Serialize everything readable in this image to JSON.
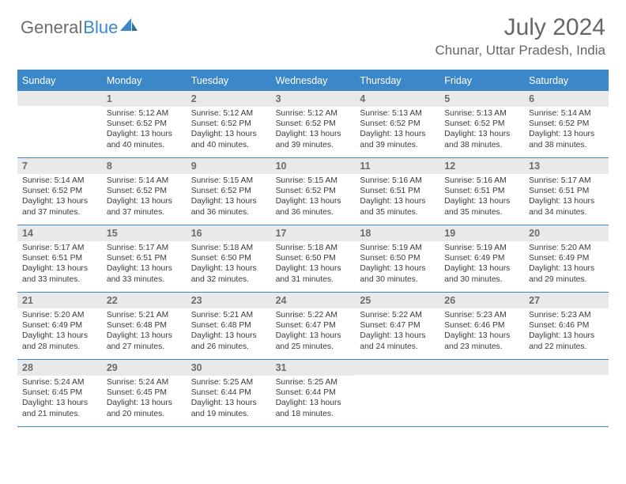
{
  "logo": {
    "general": "General",
    "blue": "Blue",
    "icon_color": "#3b87c8"
  },
  "title": "July 2024",
  "location": "Chunar, Uttar Pradesh, India",
  "colors": {
    "header_bar": "#3b87c8",
    "daynum_bg": "#e9e9e9",
    "daynum_text": "#6b6b6b",
    "body_text": "#3a3a3a",
    "title_text": "#666666",
    "background": "#ffffff"
  },
  "typography": {
    "title_fontsize": 30,
    "location_fontsize": 17,
    "dow_fontsize": 12.5,
    "daynum_fontsize": 12.5,
    "body_fontsize": 10.3
  },
  "dow": [
    "Sunday",
    "Monday",
    "Tuesday",
    "Wednesday",
    "Thursday",
    "Friday",
    "Saturday"
  ],
  "weeks": [
    [
      {
        "n": "",
        "sr": "",
        "ss": "",
        "dl": ""
      },
      {
        "n": "1",
        "sr": "Sunrise: 5:12 AM",
        "ss": "Sunset: 6:52 PM",
        "dl": "Daylight: 13 hours and 40 minutes."
      },
      {
        "n": "2",
        "sr": "Sunrise: 5:12 AM",
        "ss": "Sunset: 6:52 PM",
        "dl": "Daylight: 13 hours and 40 minutes."
      },
      {
        "n": "3",
        "sr": "Sunrise: 5:12 AM",
        "ss": "Sunset: 6:52 PM",
        "dl": "Daylight: 13 hours and 39 minutes."
      },
      {
        "n": "4",
        "sr": "Sunrise: 5:13 AM",
        "ss": "Sunset: 6:52 PM",
        "dl": "Daylight: 13 hours and 39 minutes."
      },
      {
        "n": "5",
        "sr": "Sunrise: 5:13 AM",
        "ss": "Sunset: 6:52 PM",
        "dl": "Daylight: 13 hours and 38 minutes."
      },
      {
        "n": "6",
        "sr": "Sunrise: 5:14 AM",
        "ss": "Sunset: 6:52 PM",
        "dl": "Daylight: 13 hours and 38 minutes."
      }
    ],
    [
      {
        "n": "7",
        "sr": "Sunrise: 5:14 AM",
        "ss": "Sunset: 6:52 PM",
        "dl": "Daylight: 13 hours and 37 minutes."
      },
      {
        "n": "8",
        "sr": "Sunrise: 5:14 AM",
        "ss": "Sunset: 6:52 PM",
        "dl": "Daylight: 13 hours and 37 minutes."
      },
      {
        "n": "9",
        "sr": "Sunrise: 5:15 AM",
        "ss": "Sunset: 6:52 PM",
        "dl": "Daylight: 13 hours and 36 minutes."
      },
      {
        "n": "10",
        "sr": "Sunrise: 5:15 AM",
        "ss": "Sunset: 6:52 PM",
        "dl": "Daylight: 13 hours and 36 minutes."
      },
      {
        "n": "11",
        "sr": "Sunrise: 5:16 AM",
        "ss": "Sunset: 6:51 PM",
        "dl": "Daylight: 13 hours and 35 minutes."
      },
      {
        "n": "12",
        "sr": "Sunrise: 5:16 AM",
        "ss": "Sunset: 6:51 PM",
        "dl": "Daylight: 13 hours and 35 minutes."
      },
      {
        "n": "13",
        "sr": "Sunrise: 5:17 AM",
        "ss": "Sunset: 6:51 PM",
        "dl": "Daylight: 13 hours and 34 minutes."
      }
    ],
    [
      {
        "n": "14",
        "sr": "Sunrise: 5:17 AM",
        "ss": "Sunset: 6:51 PM",
        "dl": "Daylight: 13 hours and 33 minutes."
      },
      {
        "n": "15",
        "sr": "Sunrise: 5:17 AM",
        "ss": "Sunset: 6:51 PM",
        "dl": "Daylight: 13 hours and 33 minutes."
      },
      {
        "n": "16",
        "sr": "Sunrise: 5:18 AM",
        "ss": "Sunset: 6:50 PM",
        "dl": "Daylight: 13 hours and 32 minutes."
      },
      {
        "n": "17",
        "sr": "Sunrise: 5:18 AM",
        "ss": "Sunset: 6:50 PM",
        "dl": "Daylight: 13 hours and 31 minutes."
      },
      {
        "n": "18",
        "sr": "Sunrise: 5:19 AM",
        "ss": "Sunset: 6:50 PM",
        "dl": "Daylight: 13 hours and 30 minutes."
      },
      {
        "n": "19",
        "sr": "Sunrise: 5:19 AM",
        "ss": "Sunset: 6:49 PM",
        "dl": "Daylight: 13 hours and 30 minutes."
      },
      {
        "n": "20",
        "sr": "Sunrise: 5:20 AM",
        "ss": "Sunset: 6:49 PM",
        "dl": "Daylight: 13 hours and 29 minutes."
      }
    ],
    [
      {
        "n": "21",
        "sr": "Sunrise: 5:20 AM",
        "ss": "Sunset: 6:49 PM",
        "dl": "Daylight: 13 hours and 28 minutes."
      },
      {
        "n": "22",
        "sr": "Sunrise: 5:21 AM",
        "ss": "Sunset: 6:48 PM",
        "dl": "Daylight: 13 hours and 27 minutes."
      },
      {
        "n": "23",
        "sr": "Sunrise: 5:21 AM",
        "ss": "Sunset: 6:48 PM",
        "dl": "Daylight: 13 hours and 26 minutes."
      },
      {
        "n": "24",
        "sr": "Sunrise: 5:22 AM",
        "ss": "Sunset: 6:47 PM",
        "dl": "Daylight: 13 hours and 25 minutes."
      },
      {
        "n": "25",
        "sr": "Sunrise: 5:22 AM",
        "ss": "Sunset: 6:47 PM",
        "dl": "Daylight: 13 hours and 24 minutes."
      },
      {
        "n": "26",
        "sr": "Sunrise: 5:23 AM",
        "ss": "Sunset: 6:46 PM",
        "dl": "Daylight: 13 hours and 23 minutes."
      },
      {
        "n": "27",
        "sr": "Sunrise: 5:23 AM",
        "ss": "Sunset: 6:46 PM",
        "dl": "Daylight: 13 hours and 22 minutes."
      }
    ],
    [
      {
        "n": "28",
        "sr": "Sunrise: 5:24 AM",
        "ss": "Sunset: 6:45 PM",
        "dl": "Daylight: 13 hours and 21 minutes."
      },
      {
        "n": "29",
        "sr": "Sunrise: 5:24 AM",
        "ss": "Sunset: 6:45 PM",
        "dl": "Daylight: 13 hours and 20 minutes."
      },
      {
        "n": "30",
        "sr": "Sunrise: 5:25 AM",
        "ss": "Sunset: 6:44 PM",
        "dl": "Daylight: 13 hours and 19 minutes."
      },
      {
        "n": "31",
        "sr": "Sunrise: 5:25 AM",
        "ss": "Sunset: 6:44 PM",
        "dl": "Daylight: 13 hours and 18 minutes."
      },
      {
        "n": "",
        "sr": "",
        "ss": "",
        "dl": ""
      },
      {
        "n": "",
        "sr": "",
        "ss": "",
        "dl": ""
      },
      {
        "n": "",
        "sr": "",
        "ss": "",
        "dl": ""
      }
    ]
  ]
}
